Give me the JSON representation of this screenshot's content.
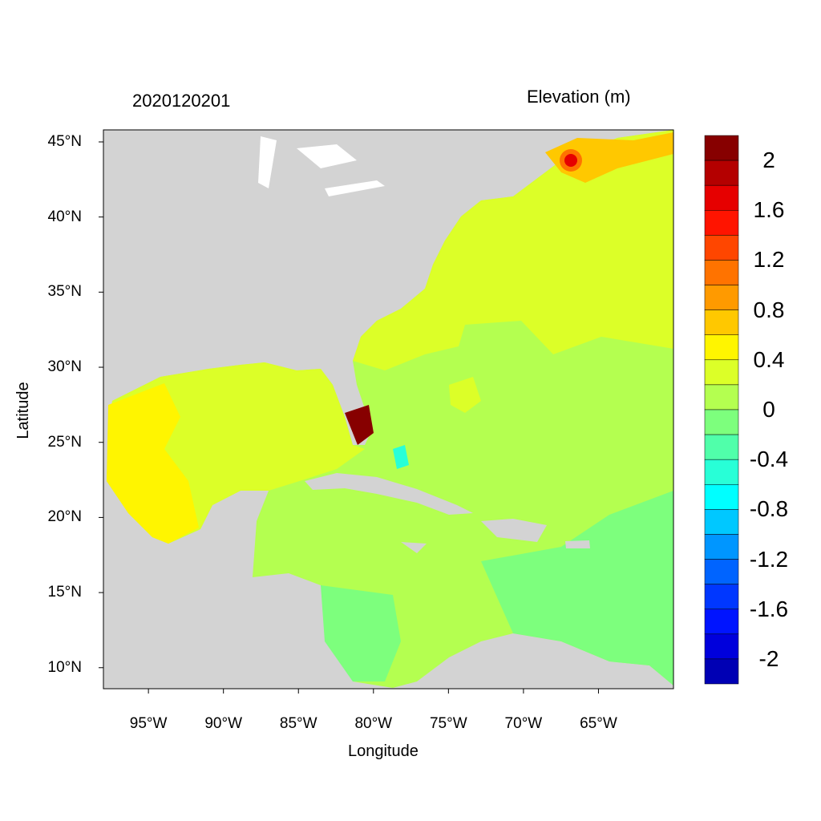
{
  "title_left": "2020120201",
  "title_right": "Elevation (m)",
  "chart_data": {
    "type": "heatmap",
    "title": "Elevation (m)",
    "subtitle": "2020120201",
    "xlabel": "Longitude",
    "ylabel": "Latitude",
    "xlim": [
      -98,
      -60
    ],
    "ylim": [
      8.6,
      45.8
    ],
    "x_ticks": [
      {
        "value": -95,
        "label": "95°W"
      },
      {
        "value": -90,
        "label": "90°W"
      },
      {
        "value": -85,
        "label": "85°W"
      },
      {
        "value": -80,
        "label": "80°W"
      },
      {
        "value": -75,
        "label": "75°W"
      },
      {
        "value": -70,
        "label": "70°W"
      },
      {
        "value": -65,
        "label": "65°W"
      }
    ],
    "y_ticks": [
      {
        "value": 45,
        "label": "45°N"
      },
      {
        "value": 40,
        "label": "40°N"
      },
      {
        "value": 35,
        "label": "35°N"
      },
      {
        "value": 30,
        "label": "30°N"
      },
      {
        "value": 25,
        "label": "25°N"
      },
      {
        "value": 20,
        "label": "20°N"
      },
      {
        "value": 15,
        "label": "15°N"
      },
      {
        "value": 10,
        "label": "10°N"
      }
    ],
    "colorbar": {
      "levels_min": -2.0,
      "levels_max": 2.0,
      "step": 0.2,
      "labels": [
        "2",
        "1.6",
        "1.2",
        "0.8",
        "0.4",
        "0",
        "-0.4",
        "-0.8",
        "-1.2",
        "-1.6",
        "-2"
      ],
      "label_values": [
        2,
        1.6,
        1.2,
        0.8,
        0.4,
        0,
        -0.4,
        -0.8,
        -1.2,
        -1.6,
        -2
      ],
      "colors_top_to_bottom": [
        "#870000",
        "#b40000",
        "#e60000",
        "#ff1400",
        "#ff4600",
        "#ff7300",
        "#ff9a00",
        "#ffc800",
        "#fff500",
        "#dcff28",
        "#b4ff50",
        "#7dff7d",
        "#50ffaa",
        "#28ffd7",
        "#00ffff",
        "#00c8ff",
        "#0096ff",
        "#0064ff",
        "#0037ff",
        "#0014ff",
        "#0000dc",
        "#0000b4"
      ]
    },
    "land_color": "#d3d3d3",
    "dominant_values": {
      "western_atlantic_north": "0.2 to 0.4",
      "western_atlantic_south": "0 to 0.2",
      "gulf_of_mexico": "0.2 to 0.4",
      "western_gulf": "0.4 to 0.6",
      "eastern_caribbean": "-0.2 to 0",
      "gulf_of_maine": "0.6 to 1.2",
      "south_florida": "above 2"
    }
  }
}
